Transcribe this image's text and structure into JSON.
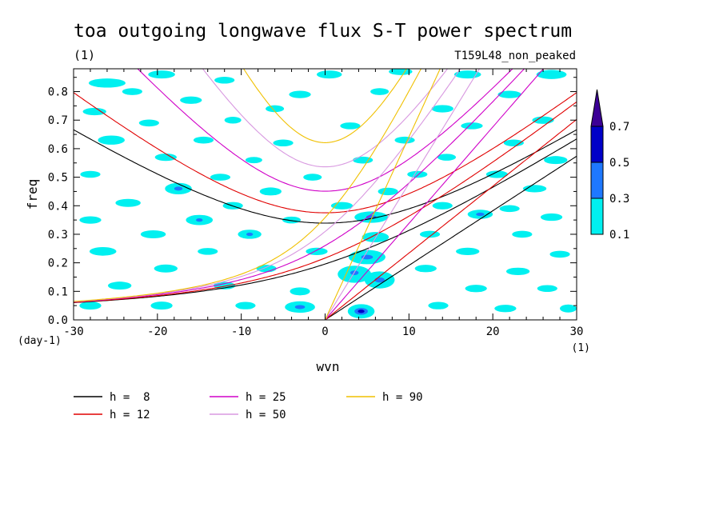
{
  "chart_data": {
    "type": "contour",
    "title": "toa outgoing longwave flux S-T power spectrum",
    "units": "(1)",
    "subtitle": "T159L48_non_peaked",
    "xlabel": "wvn",
    "ylabel": "freq",
    "x_units": "(1)",
    "y_units": "(day-1)",
    "xlim": [
      -30,
      30
    ],
    "ylim": [
      0,
      0.88
    ],
    "x_ticks": [
      "-30",
      "-20",
      "-10",
      "0",
      "10",
      "20",
      "30"
    ],
    "y_ticks": [
      "0.0",
      "0.1",
      "0.2",
      "0.3",
      "0.4",
      "0.5",
      "0.6",
      "0.7",
      "0.8"
    ],
    "colorbar": {
      "levels": [
        "0.1",
        "0.3",
        "0.5",
        "0.7"
      ],
      "colors": [
        "#00f0f0",
        "#1e78ff",
        "#0000c8",
        "#3c0096"
      ]
    },
    "fill_colors": {
      "low": "#00f0f0",
      "mid": "#1e78ff",
      "high": "#0000c8"
    },
    "dispersion_curves": [
      {
        "label": "h =  8",
        "h": 8,
        "color": "#000000"
      },
      {
        "label": "h = 12",
        "h": 12,
        "color": "#e00000"
      },
      {
        "label": "h = 25",
        "h": 25,
        "color": "#d000c8"
      },
      {
        "label": "h = 50",
        "h": 50,
        "color": "#d898e0"
      },
      {
        "label": "h = 90",
        "h": 90,
        "color": "#f0c000"
      }
    ],
    "contour_regions": [
      {
        "x": -26.0,
        "y": 0.83,
        "rx": 2.2,
        "ry": 0.016,
        "level": "low"
      },
      {
        "x": -19.5,
        "y": 0.86,
        "rx": 1.6,
        "ry": 0.014,
        "level": "low"
      },
      {
        "x": -12.0,
        "y": 0.84,
        "rx": 1.2,
        "ry": 0.012,
        "level": "low"
      },
      {
        "x": 0.5,
        "y": 0.86,
        "rx": 1.5,
        "ry": 0.014,
        "level": "low"
      },
      {
        "x": 9.0,
        "y": 0.87,
        "rx": 1.4,
        "ry": 0.012,
        "level": "low"
      },
      {
        "x": 17.0,
        "y": 0.86,
        "rx": 1.6,
        "ry": 0.014,
        "level": "low"
      },
      {
        "x": 27.0,
        "y": 0.86,
        "rx": 1.8,
        "ry": 0.016,
        "level": "low"
      },
      {
        "x": -23.0,
        "y": 0.8,
        "rx": 1.2,
        "ry": 0.012,
        "level": "low"
      },
      {
        "x": -3.0,
        "y": 0.79,
        "rx": 1.3,
        "ry": 0.013,
        "level": "low"
      },
      {
        "x": 6.5,
        "y": 0.8,
        "rx": 1.1,
        "ry": 0.012,
        "level": "low"
      },
      {
        "x": 22.0,
        "y": 0.79,
        "rx": 1.4,
        "ry": 0.013,
        "level": "low"
      },
      {
        "x": -16.0,
        "y": 0.77,
        "rx": 1.3,
        "ry": 0.013,
        "level": "low"
      },
      {
        "x": -27.5,
        "y": 0.73,
        "rx": 1.4,
        "ry": 0.013,
        "level": "low"
      },
      {
        "x": -6.0,
        "y": 0.74,
        "rx": 1.1,
        "ry": 0.012,
        "level": "low"
      },
      {
        "x": 14.0,
        "y": 0.74,
        "rx": 1.3,
        "ry": 0.013,
        "level": "low"
      },
      {
        "x": -21.0,
        "y": 0.69,
        "rx": 1.2,
        "ry": 0.012,
        "level": "low"
      },
      {
        "x": -11.0,
        "y": 0.7,
        "rx": 1.0,
        "ry": 0.012,
        "level": "low"
      },
      {
        "x": 3.0,
        "y": 0.68,
        "rx": 1.2,
        "ry": 0.012,
        "level": "low"
      },
      {
        "x": 17.5,
        "y": 0.68,
        "rx": 1.3,
        "ry": 0.012,
        "level": "low"
      },
      {
        "x": 26.0,
        "y": 0.7,
        "rx": 1.3,
        "ry": 0.013,
        "level": "low"
      },
      {
        "x": -25.5,
        "y": 0.63,
        "rx": 1.6,
        "ry": 0.016,
        "level": "low"
      },
      {
        "x": -14.5,
        "y": 0.63,
        "rx": 1.2,
        "ry": 0.012,
        "level": "low"
      },
      {
        "x": -5.0,
        "y": 0.62,
        "rx": 1.2,
        "ry": 0.012,
        "level": "low"
      },
      {
        "x": 9.5,
        "y": 0.63,
        "rx": 1.2,
        "ry": 0.012,
        "level": "low"
      },
      {
        "x": 22.5,
        "y": 0.62,
        "rx": 1.2,
        "ry": 0.012,
        "level": "low"
      },
      {
        "x": -19.0,
        "y": 0.57,
        "rx": 1.3,
        "ry": 0.013,
        "level": "low"
      },
      {
        "x": -8.5,
        "y": 0.56,
        "rx": 1.0,
        "ry": 0.011,
        "level": "low"
      },
      {
        "x": 4.5,
        "y": 0.56,
        "rx": 1.2,
        "ry": 0.012,
        "level": "low"
      },
      {
        "x": 14.5,
        "y": 0.57,
        "rx": 1.1,
        "ry": 0.012,
        "level": "low"
      },
      {
        "x": 27.5,
        "y": 0.56,
        "rx": 1.4,
        "ry": 0.014,
        "level": "low"
      },
      {
        "x": -28.0,
        "y": 0.51,
        "rx": 1.2,
        "ry": 0.012,
        "level": "low"
      },
      {
        "x": -12.5,
        "y": 0.5,
        "rx": 1.2,
        "ry": 0.012,
        "level": "low"
      },
      {
        "x": -1.5,
        "y": 0.5,
        "rx": 1.1,
        "ry": 0.012,
        "level": "low"
      },
      {
        "x": 11.0,
        "y": 0.51,
        "rx": 1.2,
        "ry": 0.012,
        "level": "low"
      },
      {
        "x": 20.5,
        "y": 0.51,
        "rx": 1.3,
        "ry": 0.013,
        "level": "low"
      },
      {
        "x": -17.5,
        "y": 0.46,
        "rx": 1.6,
        "ry": 0.02,
        "level": "low"
      },
      {
        "x": -17.5,
        "y": 0.46,
        "rx": 0.5,
        "ry": 0.007,
        "level": "mid"
      },
      {
        "x": -6.5,
        "y": 0.45,
        "rx": 1.3,
        "ry": 0.014,
        "level": "low"
      },
      {
        "x": 7.5,
        "y": 0.45,
        "rx": 1.2,
        "ry": 0.013,
        "level": "low"
      },
      {
        "x": 25.0,
        "y": 0.46,
        "rx": 1.4,
        "ry": 0.013,
        "level": "low"
      },
      {
        "x": -23.5,
        "y": 0.41,
        "rx": 1.5,
        "ry": 0.014,
        "level": "low"
      },
      {
        "x": -11.0,
        "y": 0.4,
        "rx": 1.2,
        "ry": 0.013,
        "level": "low"
      },
      {
        "x": 2.0,
        "y": 0.4,
        "rx": 1.3,
        "ry": 0.013,
        "level": "low"
      },
      {
        "x": 14.0,
        "y": 0.4,
        "rx": 1.2,
        "ry": 0.013,
        "level": "low"
      },
      {
        "x": 22.0,
        "y": 0.39,
        "rx": 1.2,
        "ry": 0.012,
        "level": "low"
      },
      {
        "x": -28.0,
        "y": 0.35,
        "rx": 1.3,
        "ry": 0.013,
        "level": "low"
      },
      {
        "x": -15.0,
        "y": 0.35,
        "rx": 1.6,
        "ry": 0.018,
        "level": "low"
      },
      {
        "x": -15.0,
        "y": 0.35,
        "rx": 0.4,
        "ry": 0.006,
        "level": "mid"
      },
      {
        "x": -4.0,
        "y": 0.35,
        "rx": 1.1,
        "ry": 0.012,
        "level": "low"
      },
      {
        "x": 5.5,
        "y": 0.36,
        "rx": 2.0,
        "ry": 0.02,
        "level": "low"
      },
      {
        "x": 5.5,
        "y": 0.36,
        "rx": 0.6,
        "ry": 0.007,
        "level": "mid"
      },
      {
        "x": 18.5,
        "y": 0.37,
        "rx": 1.5,
        "ry": 0.016,
        "level": "low"
      },
      {
        "x": 18.5,
        "y": 0.37,
        "rx": 0.5,
        "ry": 0.006,
        "level": "mid"
      },
      {
        "x": 27.0,
        "y": 0.36,
        "rx": 1.3,
        "ry": 0.013,
        "level": "low"
      },
      {
        "x": -20.5,
        "y": 0.3,
        "rx": 1.5,
        "ry": 0.014,
        "level": "low"
      },
      {
        "x": -9.0,
        "y": 0.3,
        "rx": 1.4,
        "ry": 0.016,
        "level": "low"
      },
      {
        "x": -9.0,
        "y": 0.3,
        "rx": 0.4,
        "ry": 0.006,
        "level": "mid"
      },
      {
        "x": 6.0,
        "y": 0.29,
        "rx": 1.6,
        "ry": 0.018,
        "level": "low"
      },
      {
        "x": 12.5,
        "y": 0.3,
        "rx": 1.2,
        "ry": 0.012,
        "level": "low"
      },
      {
        "x": 23.5,
        "y": 0.3,
        "rx": 1.2,
        "ry": 0.012,
        "level": "low"
      },
      {
        "x": -26.5,
        "y": 0.24,
        "rx": 1.6,
        "ry": 0.015,
        "level": "low"
      },
      {
        "x": -14.0,
        "y": 0.24,
        "rx": 1.2,
        "ry": 0.012,
        "level": "low"
      },
      {
        "x": -1.0,
        "y": 0.24,
        "rx": 1.3,
        "ry": 0.013,
        "level": "low"
      },
      {
        "x": 5.0,
        "y": 0.22,
        "rx": 2.2,
        "ry": 0.025,
        "level": "low"
      },
      {
        "x": 5.0,
        "y": 0.22,
        "rx": 0.7,
        "ry": 0.008,
        "level": "mid"
      },
      {
        "x": 17.0,
        "y": 0.24,
        "rx": 1.4,
        "ry": 0.013,
        "level": "low"
      },
      {
        "x": 28.0,
        "y": 0.23,
        "rx": 1.2,
        "ry": 0.012,
        "level": "low"
      },
      {
        "x": -19.0,
        "y": 0.18,
        "rx": 1.4,
        "ry": 0.014,
        "level": "low"
      },
      {
        "x": -7.0,
        "y": 0.18,
        "rx": 1.2,
        "ry": 0.013,
        "level": "low"
      },
      {
        "x": 3.5,
        "y": 0.16,
        "rx": 2.0,
        "ry": 0.03,
        "level": "low"
      },
      {
        "x": 3.5,
        "y": 0.165,
        "rx": 0.5,
        "ry": 0.008,
        "level": "mid"
      },
      {
        "x": 6.5,
        "y": 0.14,
        "rx": 1.8,
        "ry": 0.03,
        "level": "low"
      },
      {
        "x": 6.5,
        "y": 0.14,
        "rx": 0.6,
        "ry": 0.009,
        "level": "mid"
      },
      {
        "x": 12.0,
        "y": 0.18,
        "rx": 1.3,
        "ry": 0.013,
        "level": "low"
      },
      {
        "x": 23.0,
        "y": 0.17,
        "rx": 1.4,
        "ry": 0.013,
        "level": "low"
      },
      {
        "x": -24.5,
        "y": 0.12,
        "rx": 1.4,
        "ry": 0.014,
        "level": "low"
      },
      {
        "x": -12.0,
        "y": 0.12,
        "rx": 1.3,
        "ry": 0.013,
        "level": "low"
      },
      {
        "x": -3.0,
        "y": 0.1,
        "rx": 1.2,
        "ry": 0.014,
        "level": "low"
      },
      {
        "x": 18.0,
        "y": 0.11,
        "rx": 1.3,
        "ry": 0.013,
        "level": "low"
      },
      {
        "x": 26.5,
        "y": 0.11,
        "rx": 1.2,
        "ry": 0.012,
        "level": "low"
      },
      {
        "x": -28.0,
        "y": 0.05,
        "rx": 1.3,
        "ry": 0.014,
        "level": "low"
      },
      {
        "x": -19.5,
        "y": 0.05,
        "rx": 1.3,
        "ry": 0.014,
        "level": "low"
      },
      {
        "x": -9.5,
        "y": 0.05,
        "rx": 1.2,
        "ry": 0.013,
        "level": "low"
      },
      {
        "x": -3.0,
        "y": 0.045,
        "rx": 1.8,
        "ry": 0.02,
        "level": "low"
      },
      {
        "x": -3.0,
        "y": 0.045,
        "rx": 0.6,
        "ry": 0.007,
        "level": "mid"
      },
      {
        "x": 4.3,
        "y": 0.03,
        "rx": 1.6,
        "ry": 0.025,
        "level": "low"
      },
      {
        "x": 4.3,
        "y": 0.03,
        "rx": 0.8,
        "ry": 0.012,
        "level": "mid"
      },
      {
        "x": 4.3,
        "y": 0.03,
        "rx": 0.4,
        "ry": 0.006,
        "level": "high"
      },
      {
        "x": 13.5,
        "y": 0.05,
        "rx": 1.2,
        "ry": 0.013,
        "level": "low"
      },
      {
        "x": 21.5,
        "y": 0.04,
        "rx": 1.3,
        "ry": 0.013,
        "level": "low"
      },
      {
        "x": 29.0,
        "y": 0.04,
        "rx": 1.0,
        "ry": 0.014,
        "level": "low"
      }
    ]
  }
}
